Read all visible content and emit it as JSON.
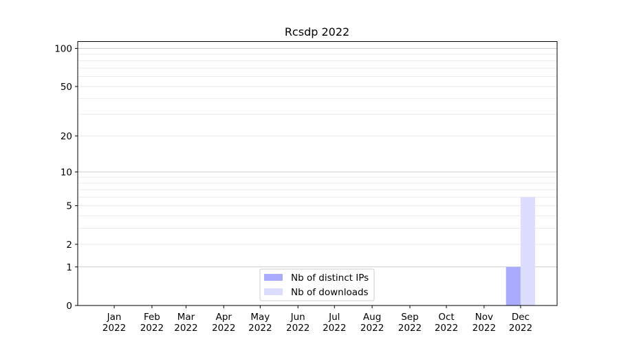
{
  "chart_data": {
    "type": "bar",
    "title": "Rcsdp 2022",
    "xlabel": "",
    "ylabel": "",
    "y_scale": "log(1+y)",
    "ylim": [
      0,
      114
    ],
    "y_ticks": [
      0,
      1,
      2,
      5,
      10,
      20,
      50,
      100
    ],
    "y_major_grid": [
      1,
      10,
      100
    ],
    "y_minor_grid": [
      2,
      3,
      4,
      5,
      6,
      7,
      8,
      9,
      20,
      30,
      40,
      50,
      60,
      70,
      80,
      90
    ],
    "grid": true,
    "xlim": [
      "2021-12-02",
      "2022-12-31"
    ],
    "x_ticks": [
      {
        "date": "2022-01-01",
        "label": [
          "Jan",
          "2022"
        ]
      },
      {
        "date": "2022-02-01",
        "label": [
          "Feb",
          "2022"
        ]
      },
      {
        "date": "2022-03-01",
        "label": [
          "Mar",
          "2022"
        ]
      },
      {
        "date": "2022-04-01",
        "label": [
          "Apr",
          "2022"
        ]
      },
      {
        "date": "2022-05-01",
        "label": [
          "May",
          "2022"
        ]
      },
      {
        "date": "2022-06-01",
        "label": [
          "Jun",
          "2022"
        ]
      },
      {
        "date": "2022-07-01",
        "label": [
          "Jul",
          "2022"
        ]
      },
      {
        "date": "2022-08-01",
        "label": [
          "Aug",
          "2022"
        ]
      },
      {
        "date": "2022-09-01",
        "label": [
          "Sep",
          "2022"
        ]
      },
      {
        "date": "2022-10-01",
        "label": [
          "Oct",
          "2022"
        ]
      },
      {
        "date": "2022-11-01",
        "label": [
          "Nov",
          "2022"
        ]
      },
      {
        "date": "2022-12-01",
        "label": [
          "Dec",
          "2022"
        ]
      }
    ],
    "months": [
      "2022-01-01",
      "2022-02-01",
      "2022-03-01",
      "2022-04-01",
      "2022-05-01",
      "2022-06-01",
      "2022-07-01",
      "2022-08-01",
      "2022-09-01",
      "2022-10-01",
      "2022-11-01",
      "2022-12-01"
    ],
    "bar_width_days": 12,
    "series": [
      {
        "name": "Nb of distinct IPs",
        "color": "#aaaaff",
        "align": "left",
        "values": [
          0,
          0,
          0,
          0,
          0,
          0,
          0,
          0,
          0,
          0,
          0,
          1
        ]
      },
      {
        "name": "Nb of downloads",
        "color": "#ddddff",
        "align": "right",
        "values": [
          0,
          0,
          0,
          0,
          0,
          0,
          0,
          0,
          0,
          0,
          0,
          6
        ]
      }
    ],
    "legend": "lower-center"
  }
}
